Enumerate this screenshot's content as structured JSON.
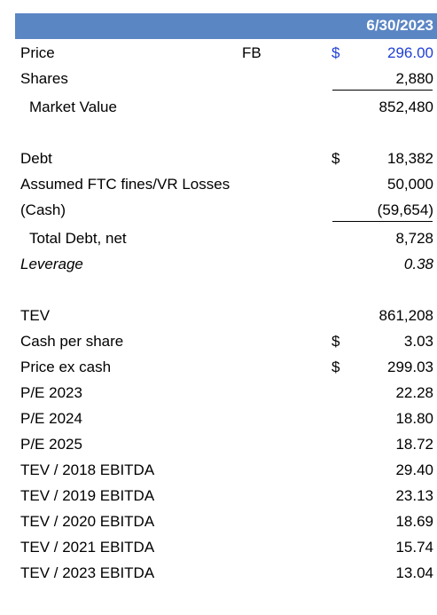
{
  "header": {
    "date": "6/30/2023",
    "bg_color": "#5b86c4"
  },
  "rows": [
    {
      "label": "Price",
      "ticker": "FB",
      "dollar": "$",
      "value": "296.00"
    },
    {
      "label": "Shares",
      "value": "2,880"
    },
    {
      "label": "Market Value",
      "value": "852,480"
    },
    {
      "label": "Debt",
      "dollar": "$",
      "value": "18,382"
    },
    {
      "label": "Assumed FTC fines/VR Losses",
      "value": "50,000"
    },
    {
      "label": "(Cash)",
      "value": "(59,654)"
    },
    {
      "label": "Total Debt, net",
      "value": "8,728"
    },
    {
      "label": "Leverage",
      "value": "0.38"
    },
    {
      "label": "TEV",
      "value": "861,208"
    },
    {
      "label": "Cash per share",
      "dollar": "$",
      "value": "3.03"
    },
    {
      "label": "Price ex cash",
      "dollar": "$",
      "value": "299.03"
    },
    {
      "label": "P/E 2023",
      "value": "22.28"
    },
    {
      "label": "P/E 2024",
      "value": "18.80"
    },
    {
      "label": "P/E 2025",
      "value": "18.72"
    },
    {
      "label": "TEV / 2018 EBITDA",
      "value": "29.40"
    },
    {
      "label": "TEV / 2019 EBITDA",
      "value": "23.13"
    },
    {
      "label": "TEV / 2020 EBITDA",
      "value": "18.69"
    },
    {
      "label": "TEV / 2021 EBITDA",
      "value": "15.74"
    },
    {
      "label": "TEV / 2023 EBITDA",
      "value": "13.04"
    }
  ],
  "colors": {
    "input_blue": "#1f3fd6"
  }
}
